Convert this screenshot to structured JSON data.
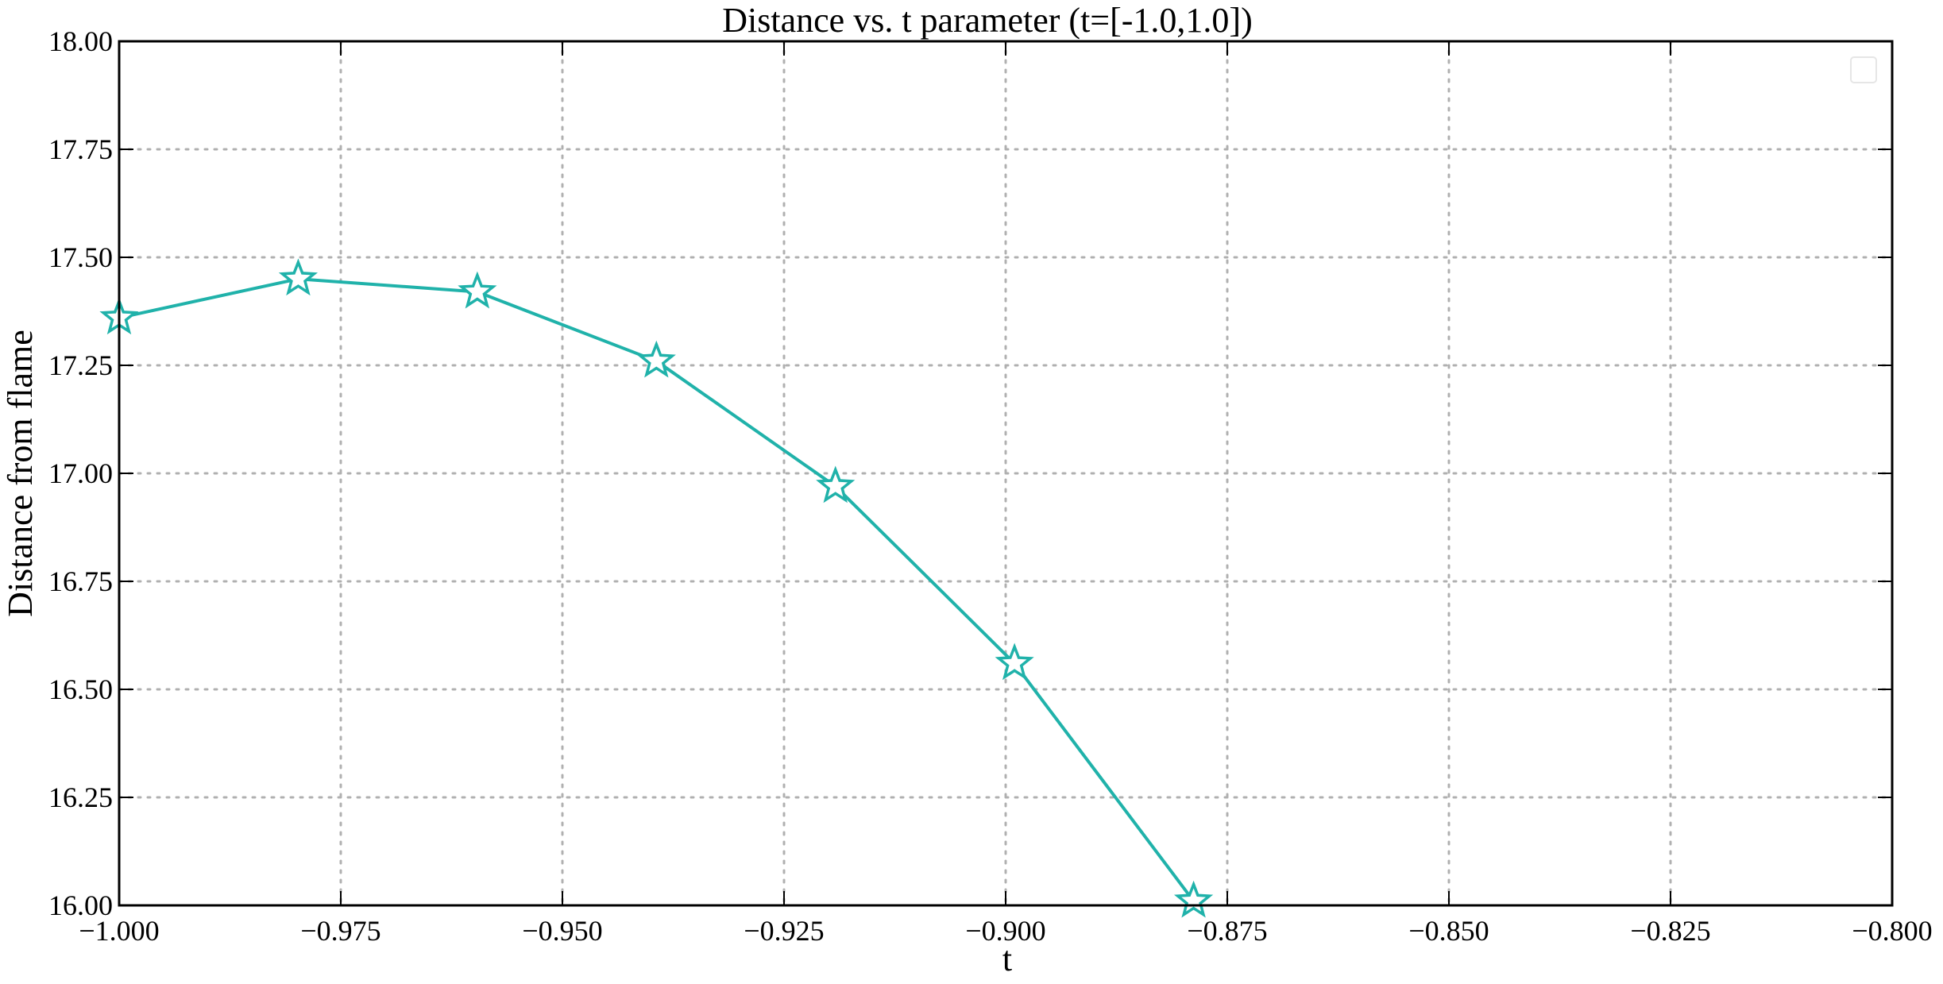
{
  "chart_data": {
    "type": "line",
    "title": "Distance vs. t parameter (t=[-1.0,1.0])",
    "xlabel": "t",
    "ylabel": "Distance from flame",
    "xlim": [
      -1.0,
      -0.8
    ],
    "ylim": [
      16.0,
      18.0
    ],
    "x_ticks": [
      -1.0,
      -0.975,
      -0.95,
      -0.925,
      -0.9,
      -0.875,
      -0.85,
      -0.825,
      -0.8
    ],
    "x_tick_labels": [
      "−1.000",
      "−0.975",
      "−0.950",
      "−0.925",
      "−0.900",
      "−0.875",
      "−0.850",
      "−0.825",
      "−0.800"
    ],
    "y_ticks": [
      16.0,
      16.25,
      16.5,
      16.75,
      17.0,
      17.25,
      17.5,
      17.75,
      18.0
    ],
    "y_tick_labels": [
      "16.00",
      "16.25",
      "16.50",
      "16.75",
      "17.00",
      "17.25",
      "17.50",
      "17.75",
      "18.00"
    ],
    "grid": true,
    "legend": "top-right (empty)",
    "series": [
      {
        "color": "#20b2aa",
        "marker": "star-outline",
        "x": [
          -1.0,
          -0.9798,
          -0.9596,
          -0.9394,
          -0.9192,
          -0.899,
          -0.8788
        ],
        "values": [
          17.36,
          17.45,
          17.42,
          17.26,
          16.97,
          16.56,
          16.01
        ]
      }
    ]
  }
}
